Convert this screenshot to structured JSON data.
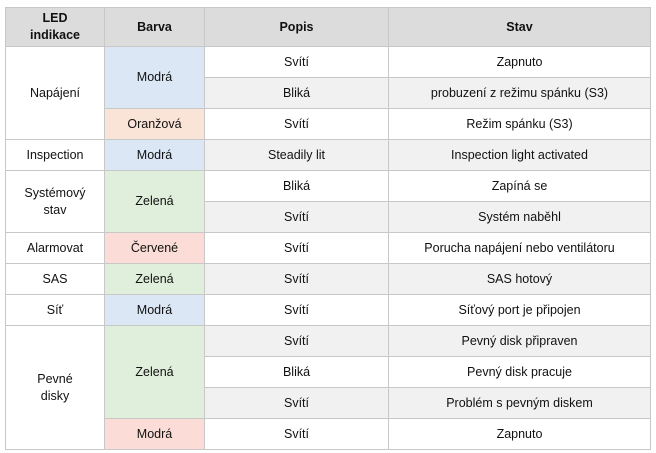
{
  "headers": {
    "led": "LED indikace",
    "color": "Barva",
    "desc": "Popis",
    "state": "Stav"
  },
  "groups": {
    "napajeni": {
      "led": "Napájení",
      "color_1": "Modrá",
      "color_2": "Oranžová",
      "rows": [
        {
          "desc": "Svítí",
          "state": "Zapnuto"
        },
        {
          "desc": "Bliká",
          "state": "probuzení z režimu spánku (S3)"
        },
        {
          "desc": "Svítí",
          "state": "Režim spánku (S3)"
        }
      ]
    },
    "inspection": {
      "led": "Inspection",
      "color": "Modrá",
      "desc": "Steadily lit",
      "state": "Inspection light activated"
    },
    "system": {
      "led": "Systémový stav",
      "color": "Zelená",
      "rows": [
        {
          "desc": "Bliká",
          "state": "Zapíná se"
        },
        {
          "desc": "Svítí",
          "state": "Systém naběhl"
        }
      ]
    },
    "alarm": {
      "led": "Alarmovat",
      "color": "Červené",
      "desc": "Svítí",
      "state": "Porucha napájení nebo ventilátoru"
    },
    "sas": {
      "led": "SAS",
      "color": "Zelená",
      "desc": "Svítí",
      "state": "SAS hotový"
    },
    "sit": {
      "led": "Síť",
      "color": "Modrá",
      "desc": "Svítí",
      "state": "Síťový port je připojen"
    },
    "disky": {
      "led": "Pevné disky",
      "color_1": "Zelená",
      "color_2": "Modrá",
      "rows": [
        {
          "desc": "Svítí",
          "state": "Pevný disk připraven"
        },
        {
          "desc": "Bliká",
          "state": "Pevný disk pracuje"
        },
        {
          "desc": "Svítí",
          "state": "Problém s pevným diskem"
        },
        {
          "desc": "Svítí",
          "state": "Zapnuto"
        }
      ]
    }
  },
  "colors": {
    "header_bg": "#dcdcdc",
    "blue": "#dbe7f5",
    "green": "#e0eedc",
    "orange": "#fae3d7",
    "red": "#fbdcd6",
    "row_alt": "#f1f1f1",
    "border": "#c8c8c8"
  }
}
